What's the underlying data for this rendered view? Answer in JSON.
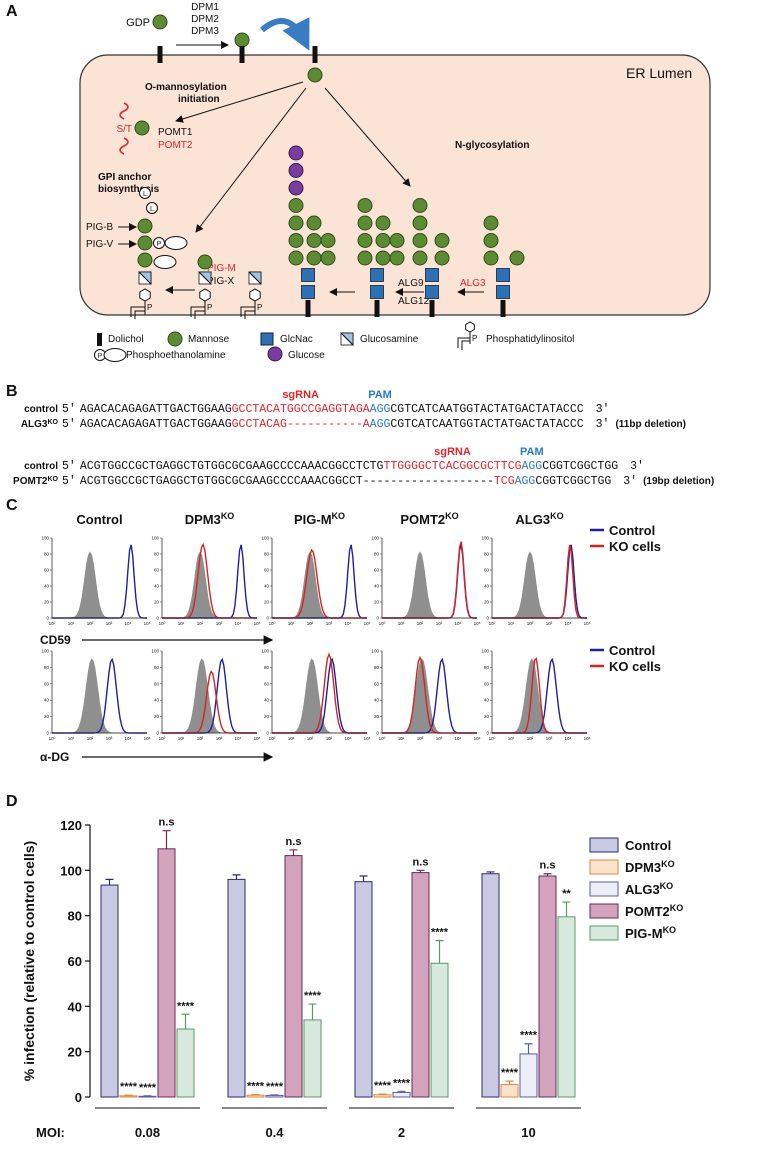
{
  "panel_labels": [
    "A",
    "B",
    "C",
    "D"
  ],
  "panel_a": {
    "gdp": "GDP",
    "dpm": [
      "DPM1",
      "DPM2",
      "DPM3"
    ],
    "er_lumen": "ER Lumen",
    "o_mannosylation": [
      "O-mannosylation",
      "initiation"
    ],
    "st": "S/T",
    "pomt": [
      "POMT1",
      "POMT2"
    ],
    "gpi": [
      "GPI anchor",
      "biosynthesis"
    ],
    "n_glycosylation": "N-glycosylation",
    "pig": [
      "PIG-B",
      "PIG-V",
      "PIG-M",
      "PIG-X"
    ],
    "alg": [
      "ALG9",
      "ALG12",
      "ALG3"
    ],
    "symbols": {
      "l": "L",
      "p": "P"
    },
    "legend": [
      "Dolichol",
      "Mannose",
      "GlcNac",
      "Glucosamine",
      "Phosphatidylinositol",
      "Phosphoethanolamine",
      "Glucose"
    ]
  },
  "panel_b": {
    "blocks": [
      {
        "sgrna": "sgRNA",
        "pam": "PAM",
        "rows": [
          {
            "label": "control",
            "prime5": "5′",
            "prime3": "3′",
            "parts": [
              {
                "text": "AGACACAGAGATTGACTGGAAG",
                "color": "#111111"
              },
              {
                "text": "GCCTACATGGCCGAGGTAGA",
                "color": "#e0242a"
              },
              {
                "text": "AGG",
                "color": "#2a78c8"
              },
              {
                "text": "CGTCATCAATGGTACTATGACTATACCC",
                "color": "#111111"
              }
            ]
          },
          {
            "label": "ALG3",
            "label_sup": "KO",
            "prime5": "5′",
            "prime3": "3′",
            "note": "(11bp deletion)",
            "parts": [
              {
                "text": "AGACACAGAGATTGACTGGAAG",
                "color": "#111111"
              },
              {
                "text": "GCCTACAG-----------A",
                "color": "#e0242a"
              },
              {
                "text": "AGG",
                "color": "#2a78c8"
              },
              {
                "text": "CGTCATCAATGGTACTATGACTATACCC",
                "color": "#111111"
              }
            ]
          }
        ]
      },
      {
        "sgrna": "sgRNA",
        "pam": "PAM",
        "rows": [
          {
            "label": "control",
            "prime5": "5′",
            "prime3": "3′",
            "parts": [
              {
                "text": "ACGTGGCCGCTGAGGCTGTGGCGCGAAGCCCCAAACGGCCTCTG",
                "color": "#111111"
              },
              {
                "text": "TTGGGGCTCACGGCGCTTCG",
                "color": "#e0242a"
              },
              {
                "text": "AGG",
                "color": "#2a78c8"
              },
              {
                "text": "CGGTCGGCTGG",
                "color": "#111111"
              }
            ]
          },
          {
            "label": "POMT2",
            "label_sup": "KO",
            "prime5": "5′",
            "prime3": "3′",
            "note": "(19bp deletion)",
            "parts": [
              {
                "text": "ACGTGGCCGCTGAGGCTGTGGCGCGAAGCCCCAAACGGCCT",
                "color": "#111111"
              },
              {
                "text": "-------------------",
                "color": "#111111"
              },
              {
                "text": "TCG",
                "color": "#e0242a"
              },
              {
                "text": "AGG",
                "color": "#2a78c8"
              },
              {
                "text": "CGGTCGGCTGG",
                "color": "#111111"
              }
            ]
          }
        ]
      }
    ]
  },
  "panel_c": {
    "columns": [
      {
        "title": "Control"
      },
      {
        "title": "DPM3",
        "sup": "KO"
      },
      {
        "title": "PIG-M",
        "sup": "KO"
      },
      {
        "title": "POMT2",
        "sup": "KO"
      },
      {
        "title": "ALG3",
        "sup": "KO"
      }
    ],
    "legend": [
      {
        "name": "Control",
        "color": "#1f1fa0"
      },
      {
        "name": "KO cells",
        "color": "#d62424"
      }
    ],
    "markers": [
      "CD59",
      "α-DG"
    ],
    "yticks": [
      0,
      20,
      40,
      60,
      80,
      100
    ],
    "xticks": [
      "10⁰",
      "10¹",
      "10²",
      "10³",
      "10⁴",
      "10⁵"
    ]
  },
  "chart_data": {
    "type": "bar",
    "ylabel": "% infection (relative to control cells)",
    "xlabel": "MOI:",
    "categories": [
      "0.08",
      "0.4",
      "2",
      "10"
    ],
    "ylim": [
      0,
      120
    ],
    "yticks": [
      0,
      20,
      40,
      60,
      80,
      100,
      120
    ],
    "series": [
      {
        "name": "Control",
        "color": "#c9c9e2",
        "edge": "#2a2a7a",
        "values": [
          93.5,
          96,
          95,
          98.5
        ],
        "errors": [
          2.5,
          2,
          2.5,
          0.8
        ]
      },
      {
        "name": "DPM3",
        "sup": "KO",
        "color": "#fde3cc",
        "edge": "#e08a3a",
        "values": [
          0.5,
          0.8,
          1,
          5.5
        ],
        "errors": [
          0.3,
          0.3,
          0.3,
          1.5
        ],
        "significance": [
          "****",
          "****",
          "****",
          "****"
        ]
      },
      {
        "name": "ALG3",
        "sup": "KO",
        "color": "#eeeef9",
        "edge": "#5a5aa8",
        "values": [
          0.3,
          0.7,
          2,
          19
        ],
        "errors": [
          0.2,
          0.2,
          0.5,
          4.5
        ],
        "significance": [
          "****",
          "****",
          "****",
          "****"
        ]
      },
      {
        "name": "POMT2",
        "sup": "KO",
        "color": "#d3a2bd",
        "edge": "#6a2a55",
        "values": [
          109.5,
          106.5,
          99,
          97.5
        ],
        "errors": [
          8,
          2.5,
          1,
          1
        ],
        "significance": [
          "n.s",
          "n.s",
          "n.s",
          "n.s"
        ]
      },
      {
        "name": "PIG-M",
        "sup": "KO",
        "color": "#d7e8dc",
        "edge": "#5a9a6a",
        "values": [
          30,
          34,
          59,
          79.5
        ],
        "errors": [
          6.5,
          7,
          10,
          6.5
        ],
        "significance": [
          "****",
          "****",
          "****",
          "**"
        ]
      }
    ]
  }
}
